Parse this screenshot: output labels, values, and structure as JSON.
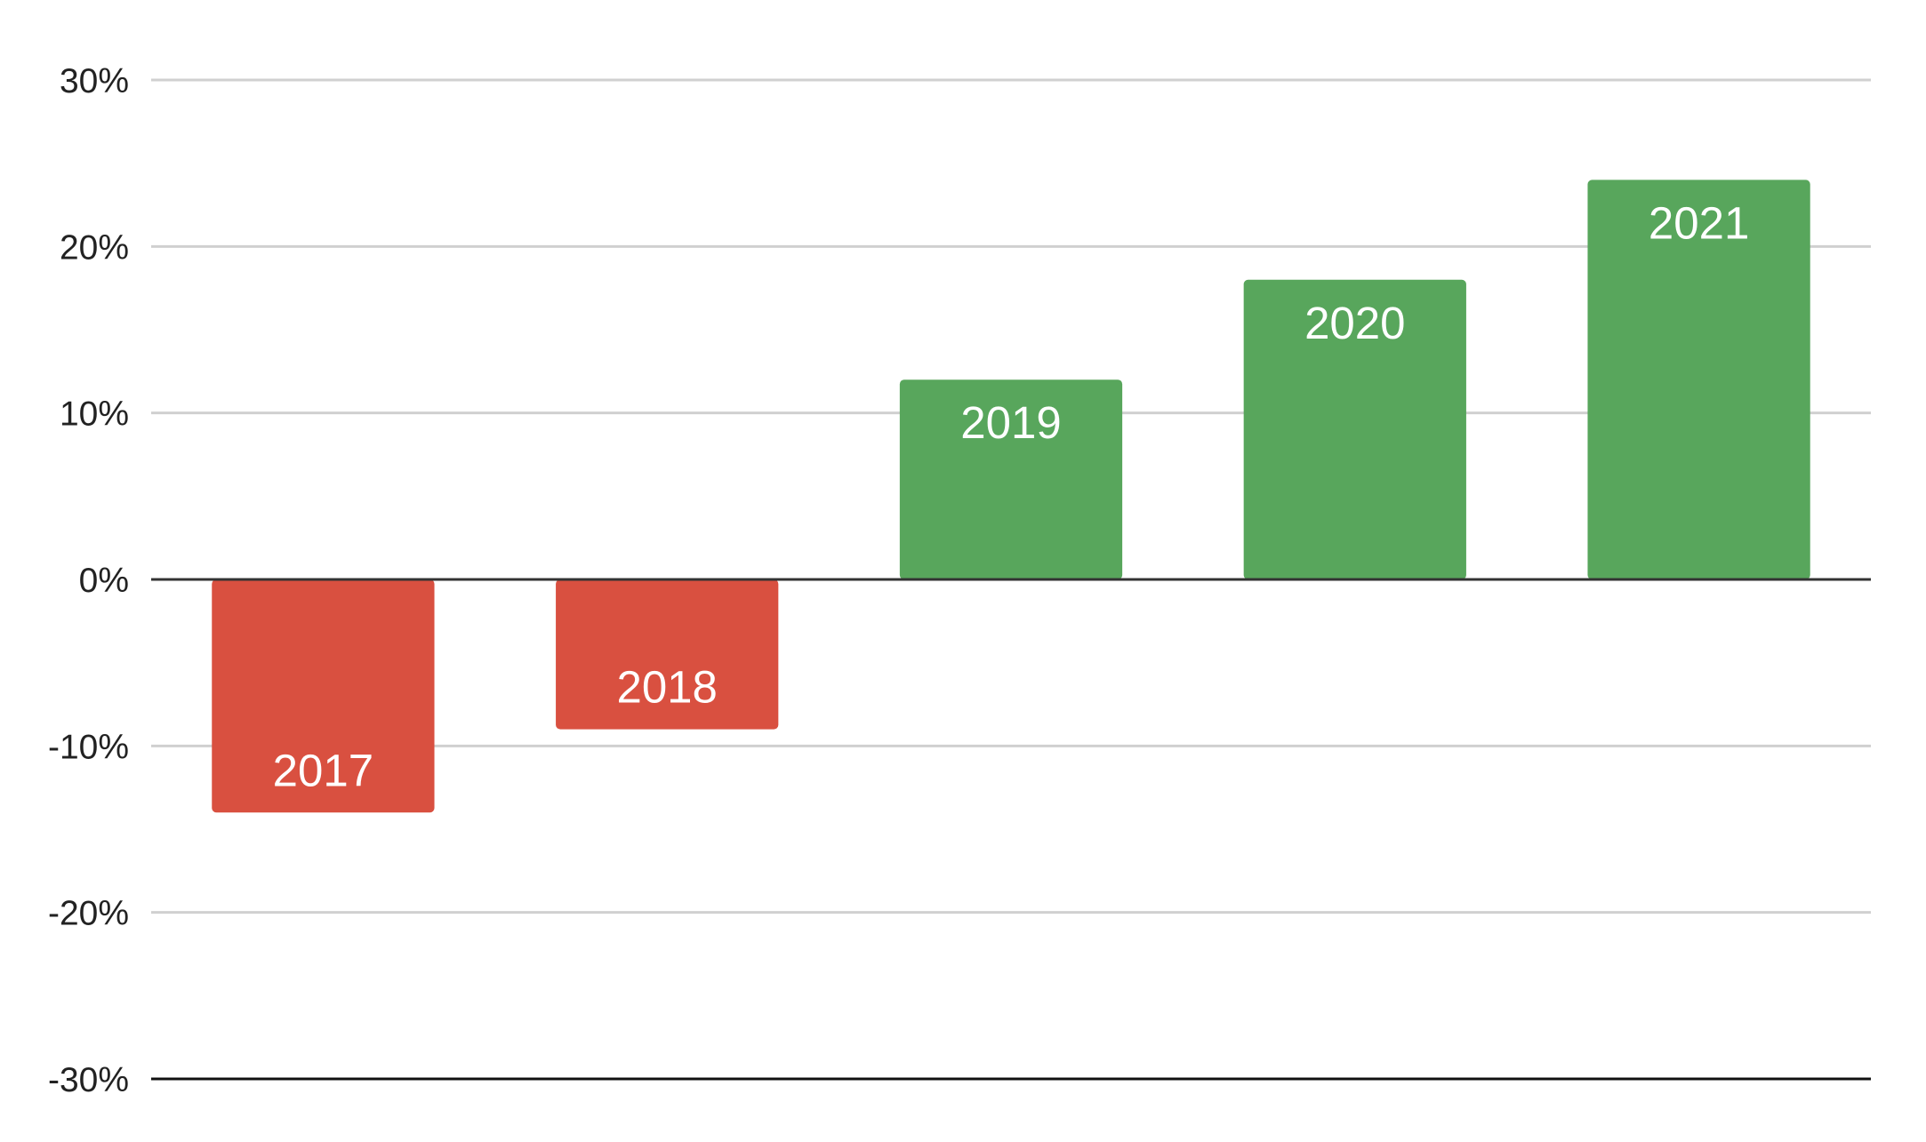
{
  "chart_data": {
    "type": "bar",
    "categories": [
      "2017",
      "2018",
      "2019",
      "2020",
      "2021"
    ],
    "values": [
      -14,
      -9,
      12,
      18,
      24
    ],
    "unit": "%",
    "ylim": [
      -30,
      30
    ],
    "yticks": [
      {
        "value": 30,
        "label": "30%"
      },
      {
        "value": 20,
        "label": "20%"
      },
      {
        "value": 10,
        "label": "10%"
      },
      {
        "value": 0,
        "label": "0%"
      },
      {
        "value": -10,
        "label": "-10%"
      },
      {
        "value": -20,
        "label": "-20%"
      },
      {
        "value": -30,
        "label": "-30%"
      }
    ],
    "grid": true,
    "legend": "none",
    "data_labels": "category names inside bars",
    "colors": {
      "positive": "#58a65c",
      "negative": "#d95040",
      "grid": "#d0d0d0",
      "axis": "#333333"
    }
  }
}
